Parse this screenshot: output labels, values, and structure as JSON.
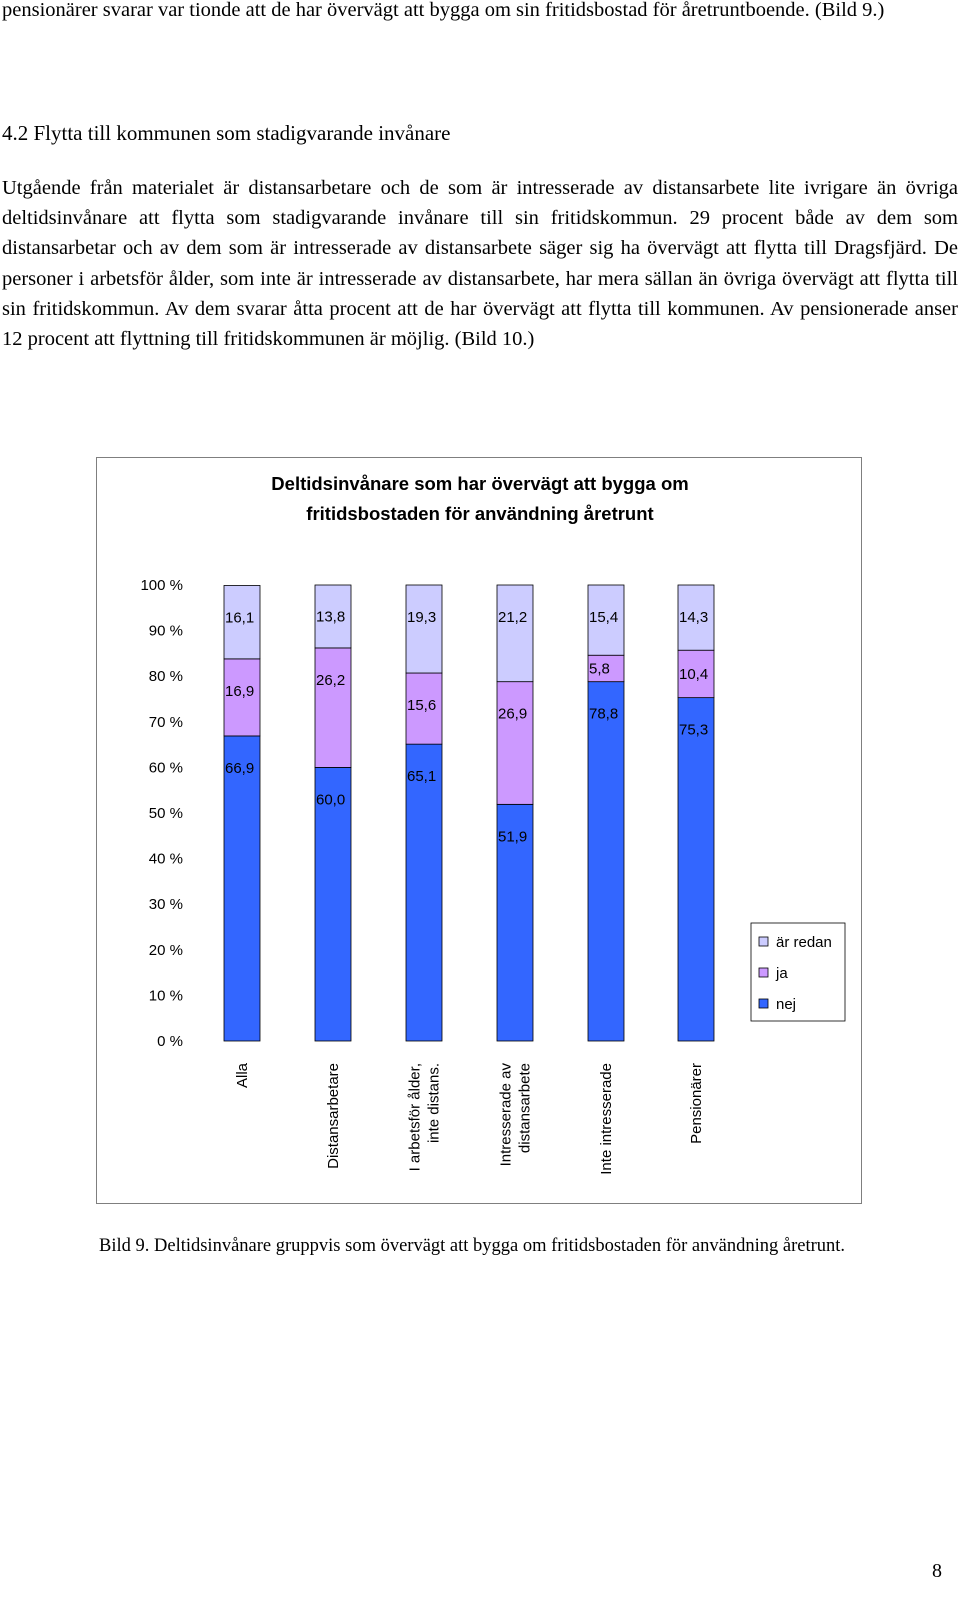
{
  "top_paragraph": "pensionärer svarar var tionde att de har övervägt att bygga om sin fritidsbostad för åretruntboende. (Bild 9.)",
  "heading": "4.2 Flytta till kommunen som stadigvarande invånare",
  "main_paragraph": "Utgående från materialet är distansarbetare och de som är intresserade av distansarbete lite ivrigare än övriga deltidsinvånare att flytta som stadigvarande invånare till sin fritidskommun. 29 procent både av dem som distansarbetar och av dem som är intresserade av distansarbete säger sig ha övervägt att flytta till Dragsfjärd. De personer i arbetsför ålder, som inte är intresserade av distansarbete, har mera sällan än övriga övervägt att flytta till sin fritidskommun. Av dem svarar åtta procent att de har övervägt att flytta till kommunen. Av pensionerade anser 12 procent att flyttning till fritidskommunen är möjlig. (Bild 10.)",
  "chart_data": {
    "type": "bar",
    "stacked": true,
    "title_lines": [
      "Deltidsinvånare som har övervägt att bygga om",
      "fritidsbostaden för användning åretrunt"
    ],
    "categories": [
      "Alla",
      "Distansarbetare",
      "I arbetsför ålder, inte distans.",
      "Intresserade av distansarbete",
      "Inte intresserade",
      "Pensionärer"
    ],
    "series": [
      {
        "name": "nej",
        "color": "#3366ff",
        "values": [
          66.9,
          60.0,
          65.1,
          51.9,
          78.8,
          75.3
        ],
        "labels": [
          "66,9",
          "60,0",
          "65,1",
          "51,9",
          "78,8",
          "75,3"
        ]
      },
      {
        "name": "ja",
        "color": "#cc99ff",
        "values": [
          16.9,
          26.2,
          15.6,
          26.9,
          5.8,
          10.4
        ],
        "labels": [
          "16,9",
          "26,2",
          "15,6",
          "26,9",
          "5,8",
          "10,4"
        ]
      },
      {
        "name": "är redan",
        "color": "#ccccff",
        "values": [
          16.1,
          13.8,
          19.3,
          21.2,
          15.4,
          14.3
        ],
        "labels": [
          "16,1",
          "13,8",
          "19,3",
          "21,2",
          "15,4",
          "14,3"
        ]
      }
    ],
    "yticks": [
      "0 %",
      "10 %",
      "20 %",
      "30 %",
      "40 %",
      "50 %",
      "60 %",
      "70 %",
      "80 %",
      "90 %",
      "100 %"
    ],
    "ylim": [
      0,
      100
    ],
    "grid": false,
    "legend_position": "right",
    "legend_order": [
      "är redan",
      "ja",
      "nej"
    ]
  },
  "caption": "Bild 9. Deltidsinvånare gruppvis som övervägt att bygga om fritidsbostaden för användning åretrunt.",
  "page_number": "8"
}
